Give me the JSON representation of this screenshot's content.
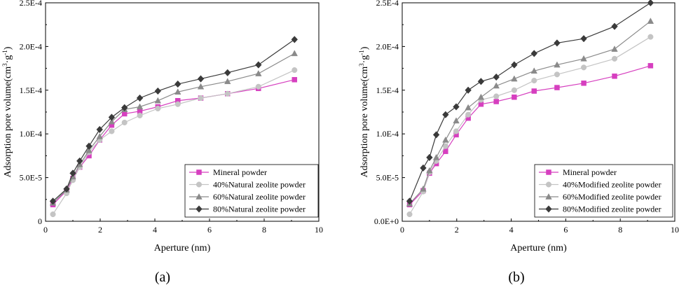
{
  "chart_data": [
    {
      "type": "line",
      "panel_label": "(a)",
      "xlabel": "Aperture (nm)",
      "ylabel_main": "Adsorption pore volume(cm",
      "ylabel_sup1": "3",
      "ylabel_mid": "·g",
      "ylabel_sup2": "-1",
      "ylabel_end": ")",
      "xlim": [
        0,
        10
      ],
      "ylim": [
        0,
        0.00025
      ],
      "xticks": [
        0,
        2,
        4,
        6,
        8,
        10
      ],
      "yticks": [
        {
          "value": 0,
          "label": "0"
        },
        {
          "value": 5e-05,
          "label": "5.0E-5"
        },
        {
          "value": 0.0001,
          "label": "1.0E-4"
        },
        {
          "value": 0.00015,
          "label": "1.5E-4"
        },
        {
          "value": 0.0002,
          "label": "2.0E-4"
        },
        {
          "value": 0.00025,
          "label": "2.5E-4"
        }
      ],
      "legend_position": "bottom-right",
      "series": [
        {
          "name": "Mineral powder",
          "color": "#d63fbf",
          "marker": "square",
          "x": [
            0.27,
            0.77,
            1.0,
            1.25,
            1.59,
            1.98,
            2.42,
            2.89,
            3.45,
            4.11,
            4.84,
            5.68,
            6.66,
            7.79,
            9.11
          ],
          "y": [
            1.9e-05,
            3.5e-05,
            4.9e-05,
            6.2e-05,
            7.5e-05,
            9.3e-05,
            0.00011,
            0.000123,
            0.000126,
            0.000131,
            0.000138,
            0.000141,
            0.000146,
            0.000152,
            0.000162
          ]
        },
        {
          "name": "40%Natural zeolite powder",
          "color": "#c4c4c4",
          "marker": "circle",
          "x": [
            0.27,
            0.77,
            1.0,
            1.25,
            1.59,
            1.98,
            2.42,
            2.89,
            3.45,
            4.11,
            4.84,
            5.68,
            6.66,
            7.79,
            9.11
          ],
          "y": [
            8e-06,
            3.2e-05,
            4.7e-05,
            6.2e-05,
            7.9e-05,
            9.3e-05,
            0.000103,
            0.000113,
            0.000121,
            0.000129,
            0.000134,
            0.000141,
            0.000146,
            0.000154,
            0.000173
          ]
        },
        {
          "name": "60%Natural zeolite powder",
          "color": "#8a8a8a",
          "marker": "triangle",
          "x": [
            0.27,
            0.77,
            1.0,
            1.25,
            1.59,
            1.98,
            2.42,
            2.89,
            3.45,
            4.11,
            4.84,
            5.68,
            6.66,
            7.79,
            9.11
          ],
          "y": [
            2.1e-05,
            3.6e-05,
            5.1e-05,
            6.5e-05,
            8.1e-05,
            9.7e-05,
            0.000114,
            0.000128,
            0.000131,
            0.000138,
            0.000148,
            0.000154,
            0.00016,
            0.000169,
            0.000192
          ]
        },
        {
          "name": "80%Natural zeolite powder",
          "color": "#3a3a3a",
          "marker": "diamond",
          "x": [
            0.27,
            0.77,
            1.0,
            1.25,
            1.59,
            1.98,
            2.42,
            2.89,
            3.45,
            4.11,
            4.84,
            5.68,
            6.66,
            7.79,
            9.11
          ],
          "y": [
            2.3e-05,
            3.7e-05,
            5.5e-05,
            6.9e-05,
            8.6e-05,
            0.000105,
            0.000119,
            0.00013,
            0.000141,
            0.000149,
            0.000157,
            0.000163,
            0.00017,
            0.000179,
            0.000208
          ]
        }
      ]
    },
    {
      "type": "line",
      "panel_label": "(b)",
      "xlabel": "Aperture (nm)",
      "ylabel_main": "Adsorption pore volume(cm",
      "ylabel_sup1": "3",
      "ylabel_mid": "·g",
      "ylabel_sup2": "-1",
      "ylabel_end": ")",
      "xlim": [
        0,
        10
      ],
      "ylim": [
        0,
        0.00025
      ],
      "xticks": [
        0,
        2,
        4,
        6,
        8,
        10
      ],
      "yticks": [
        {
          "value": 0,
          "label": "0.0E+0"
        },
        {
          "value": 5e-05,
          "label": "5.0E-5"
        },
        {
          "value": 0.0001,
          "label": "1.0E-4"
        },
        {
          "value": 0.00015,
          "label": "1.5E-4"
        },
        {
          "value": 0.0002,
          "label": "2.0E-4"
        },
        {
          "value": 0.00025,
          "label": "2.5E-4"
        }
      ],
      "legend_position": "bottom-right",
      "series": [
        {
          "name": "Mineral powder",
          "color": "#d63fbf",
          "marker": "square",
          "x": [
            0.27,
            0.77,
            1.0,
            1.25,
            1.59,
            1.98,
            2.42,
            2.89,
            3.45,
            4.11,
            4.84,
            5.68,
            6.66,
            7.79,
            9.11
          ],
          "y": [
            1.9e-05,
            3.5e-05,
            5.5e-05,
            6.6e-05,
            8e-05,
            9.9e-05,
            0.000118,
            0.000134,
            0.000137,
            0.000142,
            0.000149,
            0.000153,
            0.000158,
            0.000166,
            0.000178
          ]
        },
        {
          "name": "40%Modified zeolite powder",
          "color": "#c4c4c4",
          "marker": "circle",
          "x": [
            0.27,
            0.77,
            1.0,
            1.25,
            1.59,
            1.98,
            2.42,
            2.89,
            3.45,
            4.11,
            4.84,
            5.68,
            6.66,
            7.79,
            9.11
          ],
          "y": [
            8e-06,
            3.4e-05,
            5.6e-05,
            6.9e-05,
            8.6e-05,
            0.000103,
            0.000122,
            0.000139,
            0.000143,
            0.00015,
            0.000161,
            0.000168,
            0.000176,
            0.000186,
            0.000211
          ]
        },
        {
          "name": "60%Modified zeolite powder",
          "color": "#8a8a8a",
          "marker": "triangle",
          "x": [
            0.27,
            0.77,
            1.0,
            1.25,
            1.59,
            1.98,
            2.42,
            2.89,
            3.45,
            4.11,
            4.84,
            5.68,
            6.66,
            7.79,
            9.11
          ],
          "y": [
            2e-05,
            3.7e-05,
            5.8e-05,
            7.3e-05,
            9.3e-05,
            0.000115,
            0.00013,
            0.000142,
            0.000155,
            0.000163,
            0.000172,
            0.000179,
            0.000186,
            0.000197,
            0.000229
          ]
        },
        {
          "name": "80%Modified zeolite powder",
          "color": "#3a3a3a",
          "marker": "diamond",
          "x": [
            0.27,
            0.77,
            1.0,
            1.25,
            1.59,
            1.98,
            2.42,
            2.89,
            3.45,
            4.11,
            4.84,
            5.68,
            6.66,
            7.79,
            9.11
          ],
          "y": [
            2.3e-05,
            6.1e-05,
            7.3e-05,
            9.9e-05,
            0.000122,
            0.000131,
            0.00015,
            0.00016,
            0.000165,
            0.000179,
            0.000192,
            0.000204,
            0.000209,
            0.000223,
            0.00025
          ]
        }
      ]
    }
  ]
}
